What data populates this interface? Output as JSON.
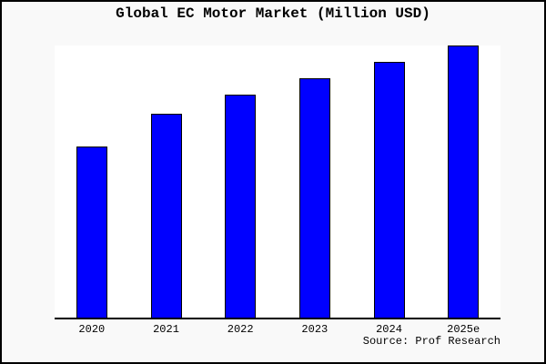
{
  "title": "Global EC Motor Market (Million USD)",
  "source_note": "Source: Prof Research",
  "colors": {
    "canvas_background": "#f9f9f9",
    "plot_background": "#ffffff",
    "bar_fill": "#0000ff",
    "bar_border": "#000000",
    "axis_line": "#000000",
    "text": "#000000",
    "frame_border": "#000000"
  },
  "chart_data": {
    "type": "bar",
    "title": "Global EC Motor Market (Million USD)",
    "categories": [
      "2020",
      "2021",
      "2022",
      "2023",
      "2024",
      "2025e"
    ],
    "values": [
      63,
      75,
      82,
      88,
      94,
      100
    ],
    "value_scale_note": "no y-axis or data labels shown in image; values estimated from bar heights relative to tallest bar (2025e = 100)",
    "xlabel": "",
    "ylabel": "",
    "ylim": [
      0,
      100
    ],
    "grid": false,
    "legend": false,
    "y_axis_shown": false,
    "source": "Source: Prof Research"
  }
}
